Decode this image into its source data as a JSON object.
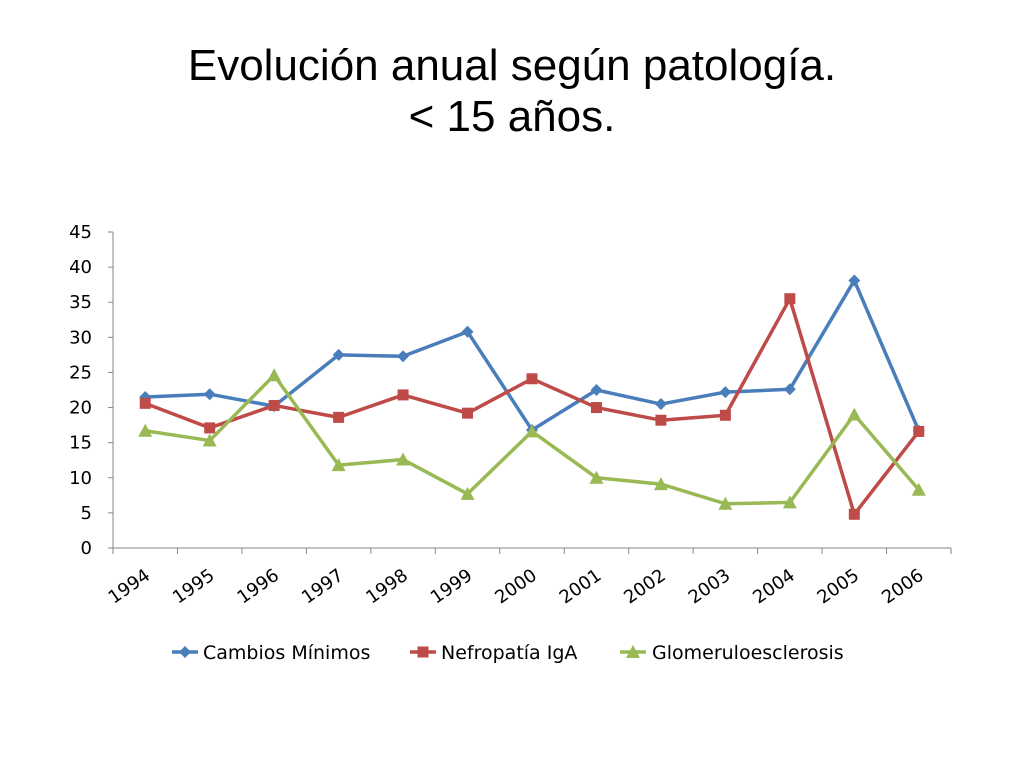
{
  "slide": {
    "title_line1": "Evolución anual según patología.",
    "title_line2": "< 15 años."
  },
  "chart_data": {
    "type": "line",
    "title": "",
    "xlabel": "",
    "ylabel": "",
    "categories": [
      "1994",
      "1995",
      "1996",
      "1997",
      "1998",
      "1999",
      "2000",
      "2001",
      "2002",
      "2003",
      "2004",
      "2005",
      "2006"
    ],
    "ylim": [
      0,
      45
    ],
    "yticks": [
      0,
      5,
      10,
      15,
      20,
      25,
      30,
      35,
      40,
      45
    ],
    "grid": false,
    "legend_position": "bottom",
    "series": [
      {
        "name": "Cambios Mínimos",
        "color": "#4a7ebb",
        "marker": "diamond",
        "values": [
          21.5,
          21.9,
          20.2,
          27.5,
          27.3,
          30.8,
          16.8,
          22.5,
          20.5,
          22.2,
          22.6,
          38.1,
          16.7
        ]
      },
      {
        "name": "Nefropatía IgA",
        "color": "#be4b48",
        "marker": "square",
        "values": [
          20.6,
          17.1,
          20.3,
          18.6,
          21.8,
          19.2,
          24.1,
          20.0,
          18.2,
          18.9,
          35.5,
          4.8,
          16.6
        ]
      },
      {
        "name": "Glomeruloesclerosis",
        "color": "#98b954",
        "marker": "triangle",
        "values": [
          16.7,
          15.3,
          24.6,
          11.8,
          12.6,
          7.7,
          16.6,
          10.0,
          9.1,
          6.3,
          6.5,
          19.0,
          8.3
        ]
      }
    ]
  }
}
